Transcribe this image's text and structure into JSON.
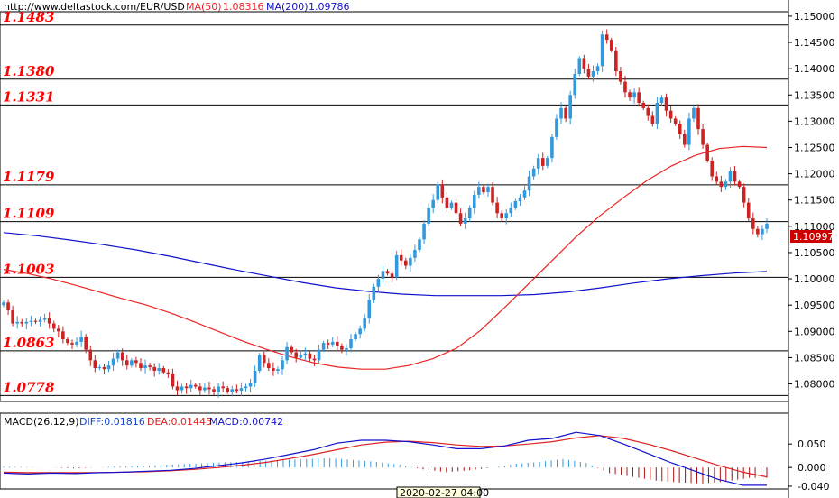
{
  "header": {
    "site": "http://www.deltastock.com/",
    "symbol": "EUR/USD",
    "ma50_label": "MA(50)",
    "ma50_value": "1.08316",
    "ma200_label": "MA(200)",
    "ma200_value": "1.09786"
  },
  "colors": {
    "up": "#3399dd",
    "down": "#cc2222",
    "ma50": "#ee2222",
    "ma200": "#1111cc",
    "level_text": "#ff0000",
    "price_tag": "#cc0000"
  },
  "price_tag": "1.10997",
  "crosshair_time": "2020-02-27 04:00",
  "chart_data": {
    "type": "candlestick",
    "ylim": [
      1.077,
      1.1505
    ],
    "yticks": [
      "1.15000",
      "1.14500",
      "1.14000",
      "1.13500",
      "1.13000",
      "1.12500",
      "1.12000",
      "1.11500",
      "1.11000",
      "1.10500",
      "1.10000",
      "1.09500",
      "1.09000",
      "1.08500",
      "1.08000"
    ],
    "levels": [
      {
        "value": 1.1483,
        "label": "1.1483"
      },
      {
        "value": 1.138,
        "label": "1.1380"
      },
      {
        "value": 1.1331,
        "label": "1.1331"
      },
      {
        "value": 1.1179,
        "label": "1.1179"
      },
      {
        "value": 1.1109,
        "label": "1.1109"
      },
      {
        "value": 1.1003,
        "label": "1.1003"
      },
      {
        "value": 1.0863,
        "label": "1.0863"
      },
      {
        "value": 1.0778,
        "label": "1.0778"
      }
    ],
    "closes": [
      1.0955,
      1.094,
      1.0915,
      1.0918,
      1.0915,
      1.0918,
      1.092,
      1.0918,
      1.0922,
      1.0925,
      1.0915,
      1.0905,
      1.09,
      1.0885,
      1.0878,
      1.0875,
      1.088,
      1.089,
      1.0865,
      1.0845,
      1.083,
      1.0832,
      1.0828,
      1.0835,
      1.0848,
      1.086,
      1.0845,
      1.0835,
      1.0845,
      1.084,
      1.083,
      1.0835,
      1.0832,
      1.0825,
      1.083,
      1.0822,
      1.082,
      1.0795,
      1.0788,
      1.0795,
      1.0792,
      1.0798,
      1.0795,
      1.0788,
      1.0793,
      1.079,
      1.0785,
      1.0795,
      1.0792,
      1.0785,
      1.079,
      1.0787,
      1.0792,
      1.0795,
      1.0802,
      1.0825,
      1.0855,
      1.084,
      1.083,
      1.0825,
      1.0828,
      1.0845,
      1.087,
      1.086,
      1.085,
      1.0855,
      1.0858,
      1.0848,
      1.0845,
      1.0865,
      1.0878,
      1.0875,
      1.088,
      1.0872,
      1.0865,
      1.0868,
      1.0885,
      1.0895,
      1.0905,
      1.0925,
      1.096,
      1.0985,
      1.1,
      1.1015,
      1.101,
      1.1003,
      1.1045,
      1.1035,
      1.1025,
      1.104,
      1.1055,
      1.1075,
      1.1105,
      1.1135,
      1.115,
      1.118,
      1.1155,
      1.1135,
      1.1145,
      1.1125,
      1.1105,
      1.1115,
      1.1135,
      1.116,
      1.1175,
      1.1165,
      1.1175,
      1.1145,
      1.1125,
      1.1115,
      1.1125,
      1.1135,
      1.1148,
      1.1155,
      1.1168,
      1.1195,
      1.121,
      1.123,
      1.1215,
      1.123,
      1.127,
      1.1305,
      1.1325,
      1.1305,
      1.135,
      1.139,
      1.142,
      1.14,
      1.1385,
      1.1395,
      1.1405,
      1.1465,
      1.1455,
      1.1435,
      1.1395,
      1.1375,
      1.1355,
      1.1345,
      1.1355,
      1.1335,
      1.1325,
      1.131,
      1.1295,
      1.1335,
      1.1345,
      1.132,
      1.1305,
      1.1295,
      1.1275,
      1.1255,
      1.1305,
      1.1325,
      1.1285,
      1.1255,
      1.1225,
      1.1195,
      1.1185,
      1.1175,
      1.1185,
      1.1205,
      1.1185,
      1.1175,
      1.1145,
      1.1115,
      1.1095,
      1.1085,
      1.1095,
      1.1105
    ],
    "ma50": [
      1.1018,
      1.101,
      1.1,
      1.0988,
      1.0975,
      1.0962,
      1.095,
      1.0935,
      1.0918,
      1.09,
      1.0882,
      1.0866,
      1.0852,
      1.084,
      1.0832,
      1.0828,
      1.0828,
      1.0835,
      1.0848,
      1.0868,
      1.0902,
      1.0945,
      1.099,
      1.1035,
      1.108,
      1.112,
      1.1155,
      1.1188,
      1.1215,
      1.1235,
      1.1248,
      1.1252,
      1.125
    ],
    "ma200": [
      1.1088,
      1.1082,
      1.1074,
      1.1065,
      1.1055,
      1.1043,
      1.103,
      1.1017,
      1.1005,
      1.0993,
      1.0983,
      1.0976,
      1.0971,
      1.0968,
      1.0968,
      1.0968,
      1.097,
      1.0975,
      1.0983,
      1.0992,
      1.1,
      1.1006,
      1.1011,
      1.1014
    ],
    "macd": {
      "label": "MACD(26,12,9)",
      "diff_label": "DIFF:0.01816",
      "dea_label": "DEA:0.01445",
      "macd_label": "MACD:0.00742",
      "ylim": [
        -0.042,
        0.085
      ],
      "yticks": [
        "0.050",
        "0.000",
        "-0.040"
      ],
      "diff": [
        -0.012,
        -0.014,
        -0.012,
        -0.013,
        -0.011,
        -0.01,
        -0.008,
        -0.006,
        -0.002,
        0.004,
        0.01,
        0.018,
        0.028,
        0.038,
        0.052,
        0.058,
        0.058,
        0.055,
        0.048,
        0.04,
        0.04,
        0.046,
        0.058,
        0.062,
        0.075,
        0.068,
        0.05,
        0.03,
        0.01,
        -0.008,
        -0.026,
        -0.038,
        -0.038
      ],
      "dea": [
        -0.01,
        -0.011,
        -0.011,
        -0.011,
        -0.011,
        -0.01,
        -0.009,
        -0.007,
        -0.004,
        0.0,
        0.005,
        0.011,
        0.019,
        0.028,
        0.038,
        0.048,
        0.054,
        0.056,
        0.053,
        0.048,
        0.045,
        0.046,
        0.05,
        0.055,
        0.063,
        0.068,
        0.062,
        0.05,
        0.036,
        0.02,
        0.004,
        -0.01,
        -0.02
      ],
      "bars": [
        0.002,
        0.001,
        0.0,
        -0.002,
        0.0,
        0.003,
        0.004,
        0.006,
        0.008,
        0.01,
        0.012,
        0.014,
        0.016,
        0.018,
        0.02,
        0.016,
        0.012,
        0.006,
        -0.004,
        -0.01,
        -0.006,
        0.0,
        0.008,
        0.012,
        0.018,
        0.01,
        -0.012,
        -0.02,
        -0.028,
        -0.032,
        -0.034,
        -0.03,
        -0.022
      ]
    }
  }
}
